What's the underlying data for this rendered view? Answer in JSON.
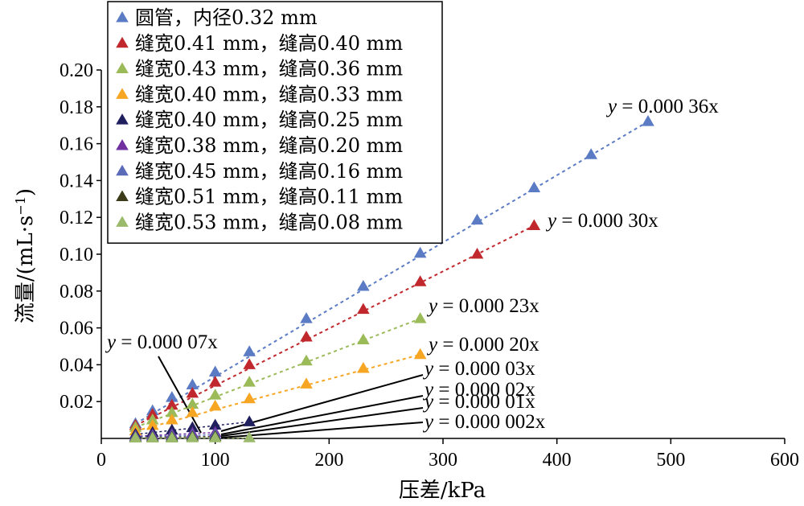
{
  "chart_data": {
    "type": "scatter",
    "title": "",
    "xlabel": "压差/kPa",
    "ylabel_main": "流量/(mL·s",
    "ylabel_sup": "−1",
    "ylabel_close": ")",
    "xlim": [
      0,
      600
    ],
    "ylim": [
      0,
      0.2
    ],
    "x_ticks": [
      0,
      100,
      200,
      300,
      400,
      500,
      600
    ],
    "x_tick_labels": [
      "0",
      "100",
      "200",
      "300",
      "400",
      "500",
      "600"
    ],
    "y_ticks": [
      0.02,
      0.04,
      0.06,
      0.08,
      0.1,
      0.12,
      0.14,
      0.16,
      0.18,
      0.2
    ],
    "y_tick_labels": [
      "0.02",
      "0.04",
      "0.06",
      "0.08",
      "0.10",
      "0.12",
      "0.14",
      "0.16",
      "0.18",
      "0.20"
    ],
    "grid": false,
    "legend_position": "top-left",
    "series": [
      {
        "name": "圆管，内径0.32 mm",
        "color": "#5b7bc4",
        "slope": 0.00036,
        "x": [
          30,
          45,
          62,
          80,
          100,
          130,
          180,
          230,
          280,
          330,
          380,
          430,
          480
        ],
        "y": [
          0.008,
          0.015,
          0.0222,
          0.029,
          0.036,
          0.047,
          0.065,
          0.0825,
          0.1005,
          0.1185,
          0.136,
          0.154,
          0.172
        ]
      },
      {
        "name": "缝宽0.41 mm，缝高0.40 mm",
        "color": "#c0282d",
        "slope": 0.0003,
        "x": [
          30,
          45,
          62,
          80,
          100,
          130,
          180,
          230,
          280,
          330,
          380
        ],
        "y": [
          0.007,
          0.013,
          0.018,
          0.0245,
          0.0305,
          0.04,
          0.055,
          0.07,
          0.085,
          0.1,
          0.1155
        ]
      },
      {
        "name": "缝宽0.43 mm，缝高0.36 mm",
        "color": "#9bbb59",
        "slope": 0.00023,
        "x": [
          30,
          45,
          62,
          80,
          100,
          130,
          180,
          230,
          280
        ],
        "y": [
          0.006,
          0.01,
          0.014,
          0.0185,
          0.0235,
          0.0305,
          0.042,
          0.0535,
          0.065
        ]
      },
      {
        "name": "缝宽0.40 mm，缝高0.33 mm",
        "color": "#f6a623",
        "slope": 0.0002,
        "x": [
          30,
          45,
          62,
          80,
          100,
          130,
          180,
          230,
          280
        ],
        "y": [
          0.004,
          0.007,
          0.01,
          0.014,
          0.0175,
          0.0215,
          0.0295,
          0.038,
          0.0455
        ]
      },
      {
        "name": "缝宽0.40 mm，缝高0.25 mm",
        "color": "#1f1f5e",
        "slope": 7e-05,
        "x": [
          30,
          45,
          62,
          80,
          100,
          130
        ],
        "y": [
          0.0022,
          0.0032,
          0.0045,
          0.0058,
          0.0072,
          0.009
        ]
      },
      {
        "name": "缝宽0.38 mm，缝高0.20 mm",
        "color": "#7030a0",
        "slope": 3e-05,
        "x": [
          30,
          45,
          62,
          80,
          100
        ],
        "y": [
          0.0012,
          0.0018,
          0.0022,
          0.0028,
          0.0032
        ]
      },
      {
        "name": "缝宽0.45 mm，缝高0.16 mm",
        "color": "#5b6bb8",
        "slope": 2e-05,
        "x": [
          30,
          45,
          62,
          80,
          100
        ],
        "y": [
          0.0008,
          0.0011,
          0.0014,
          0.0017,
          0.002
        ]
      },
      {
        "name": "缝宽0.51 mm，缝高0.11 mm",
        "color": "#3b3b1a",
        "slope": 1e-05,
        "x": [
          30,
          45,
          62,
          80,
          100
        ],
        "y": [
          0.0004,
          0.0006,
          0.0007,
          0.0009,
          0.001
        ]
      },
      {
        "name": "缝宽0.53 mm，缝高0.08 mm",
        "color": "#9cba6c",
        "slope": 2e-06,
        "x": [
          30,
          45,
          62,
          80,
          100,
          130
        ],
        "y": [
          0.0002,
          0.0002,
          0.0002,
          0.0003,
          0.0003,
          0.0003
        ]
      }
    ],
    "annotations": [
      {
        "prefix": "y",
        "text": " = 0.000 36x",
        "series": 0
      },
      {
        "prefix": "y",
        "text": " = 0.000 30x",
        "series": 1
      },
      {
        "prefix": "y",
        "text": " = 0.000 23x",
        "series": 2
      },
      {
        "prefix": "y",
        "text": " = 0.000 20x",
        "series": 3
      },
      {
        "prefix": "y",
        "text": " = 0.000 07x",
        "series": 4
      },
      {
        "prefix": "y",
        "text": " = 0.000 03x",
        "series": 5
      },
      {
        "prefix": "y",
        "text": " = 0.000 02x",
        "series": 6
      },
      {
        "prefix": "y",
        "text": " = 0.000 01x",
        "series": 7
      },
      {
        "prefix": "y",
        "text": " = 0.000 002x",
        "series": 8
      }
    ]
  }
}
